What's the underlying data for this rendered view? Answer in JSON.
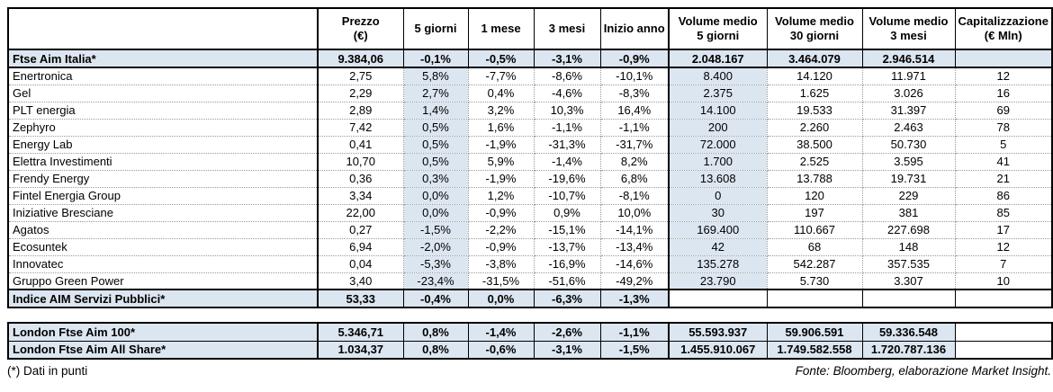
{
  "header": {
    "columns": [
      {
        "l1": "",
        "l2": ""
      },
      {
        "l1": "Prezzo",
        "l2": "(€)"
      },
      {
        "l1": "5 giorni",
        "l2": ""
      },
      {
        "l1": "1 mese",
        "l2": ""
      },
      {
        "l1": "3 mesi",
        "l2": ""
      },
      {
        "l1": "Inizio anno",
        "l2": ""
      },
      {
        "l1": "Volume medio",
        "l2": "5 giorni"
      },
      {
        "l1": "Volume medio",
        "l2": "30 giorni"
      },
      {
        "l1": "Volume medio",
        "l2": "3 mesi"
      },
      {
        "l1": "Capitalizzazione",
        "l2": "(€ Mln)"
      }
    ]
  },
  "main_rows": [
    {
      "type": "index",
      "cells": [
        "Ftse Aim Italia*",
        "9.384,06",
        "-0,1%",
        "-0,5%",
        "-3,1%",
        "-0,9%",
        "2.048.167",
        "3.464.079",
        "2.946.514",
        ""
      ]
    },
    {
      "type": "company",
      "cells": [
        "Enertronica",
        "2,75",
        "5,8%",
        "-7,7%",
        "-8,6%",
        "-10,1%",
        "8.400",
        "14.120",
        "11.971",
        "12"
      ]
    },
    {
      "type": "company",
      "cells": [
        "Gel",
        "2,29",
        "2,7%",
        "0,4%",
        "-4,6%",
        "-8,3%",
        "2.375",
        "1.625",
        "3.026",
        "16"
      ]
    },
    {
      "type": "company",
      "cells": [
        "PLT energia",
        "2,89",
        "1,4%",
        "3,2%",
        "10,3%",
        "16,4%",
        "14.100",
        "19.533",
        "31.397",
        "69"
      ]
    },
    {
      "type": "company",
      "cells": [
        "Zephyro",
        "7,42",
        "0,5%",
        "1,6%",
        "-1,1%",
        "-1,1%",
        "200",
        "2.260",
        "2.463",
        "78"
      ]
    },
    {
      "type": "company",
      "cells": [
        "Energy Lab",
        "0,41",
        "0,5%",
        "-1,9%",
        "-31,3%",
        "-31,7%",
        "72.000",
        "38.500",
        "50.730",
        "5"
      ]
    },
    {
      "type": "company",
      "cells": [
        "Elettra Investimenti",
        "10,70",
        "0,5%",
        "5,9%",
        "-1,4%",
        "8,2%",
        "1.700",
        "2.525",
        "3.595",
        "41"
      ]
    },
    {
      "type": "company",
      "cells": [
        "Frendy Energy",
        "0,36",
        "0,3%",
        "-1,9%",
        "-19,6%",
        "6,8%",
        "13.608",
        "13.788",
        "19.731",
        "21"
      ]
    },
    {
      "type": "company",
      "cells": [
        "Fintel Energia Group",
        "3,34",
        "0,0%",
        "1,2%",
        "-10,7%",
        "-8,1%",
        "0",
        "120",
        "229",
        "86"
      ]
    },
    {
      "type": "company",
      "cells": [
        "Iniziative Bresciane",
        "22,00",
        "0,0%",
        "-0,9%",
        "0,9%",
        "10,0%",
        "30",
        "197",
        "381",
        "85"
      ]
    },
    {
      "type": "company",
      "cells": [
        "Agatos",
        "0,27",
        "-1,5%",
        "-2,2%",
        "-15,1%",
        "-14,1%",
        "169.400",
        "110.667",
        "227.698",
        "17"
      ]
    },
    {
      "type": "company",
      "cells": [
        "Ecosuntek",
        "6,94",
        "-2,0%",
        "-0,9%",
        "-13,7%",
        "-13,4%",
        "42",
        "68",
        "148",
        "12"
      ]
    },
    {
      "type": "company",
      "cells": [
        "Innovatec",
        "0,04",
        "-5,3%",
        "-3,8%",
        "-16,9%",
        "-14,6%",
        "135.278",
        "542.287",
        "357.535",
        "7"
      ]
    },
    {
      "type": "company",
      "cells": [
        "Gruppo Green Power",
        "3,40",
        "-23,4%",
        "-31,5%",
        "-51,6%",
        "-49,2%",
        "23.790",
        "5.730",
        "3.307",
        "10"
      ]
    },
    {
      "type": "index6",
      "cells": [
        "Indice AIM Servizi Pubblici*",
        "53,33",
        "-0,4%",
        "0,0%",
        "-6,3%",
        "-1,3%",
        "",
        "",
        "",
        ""
      ]
    }
  ],
  "london_rows": [
    {
      "type": "london",
      "cells": [
        "London Ftse Aim 100*",
        "5.346,71",
        "0,8%",
        "-1,4%",
        "-2,6%",
        "-1,1%",
        "55.593.937",
        "59.906.591",
        "59.336.548",
        ""
      ]
    },
    {
      "type": "london",
      "cells": [
        "London Ftse Aim All Share*",
        "1.034,37",
        "0,8%",
        "-0,6%",
        "-3,1%",
        "-1,5%",
        "1.455.910.067",
        "1.749.582.558",
        "1.720.787.136",
        ""
      ]
    }
  ],
  "footer": {
    "note": "(*) Dati in punti",
    "source": "Fonte: Bloomberg, elaborazione Market Insight."
  },
  "colors": {
    "highlight": "#dce6f1",
    "border": "#000000",
    "dotted_grid": "#9a9a9a"
  }
}
